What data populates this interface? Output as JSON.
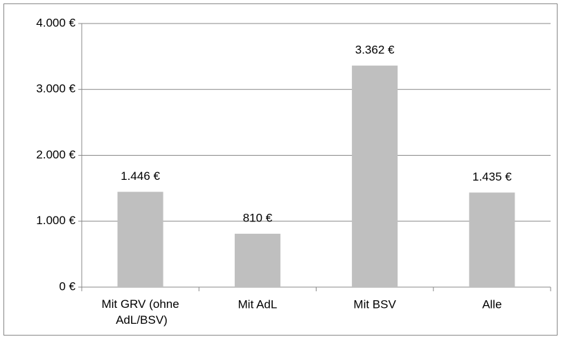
{
  "chart_data": {
    "type": "bar",
    "categories": [
      "Mit GRV (ohne AdL/BSV)",
      "Mit AdL",
      "Mit BSV",
      "Alle"
    ],
    "values": [
      1446,
      810,
      3362,
      1435
    ],
    "value_labels": [
      "1.446 €",
      "810 €",
      "3.362 €",
      "1.435 €"
    ],
    "color": "#bfbfbf",
    "ylim": [
      0,
      4000
    ],
    "yticks": [
      {
        "value": 0,
        "label": "0 €"
      },
      {
        "value": 1000,
        "label": "1.000 €"
      },
      {
        "value": 2000,
        "label": "2.000 €"
      },
      {
        "value": 3000,
        "label": "3.000 €"
      },
      {
        "value": 4000,
        "label": "4.000 €"
      }
    ],
    "grid": true
  }
}
